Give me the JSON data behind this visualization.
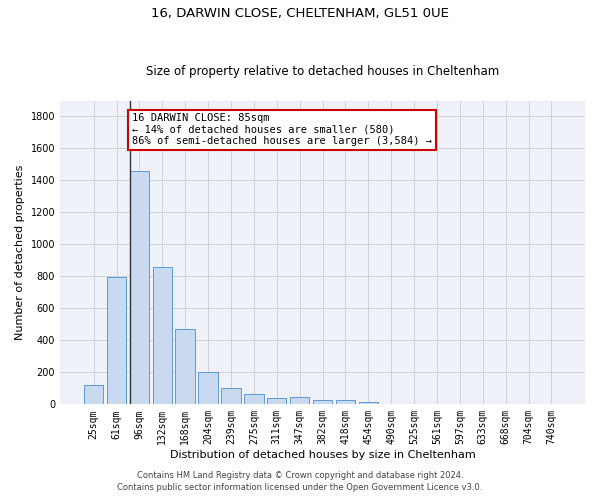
{
  "title": "16, DARWIN CLOSE, CHELTENHAM, GL51 0UE",
  "subtitle": "Size of property relative to detached houses in Cheltenham",
  "xlabel": "Distribution of detached houses by size in Cheltenham",
  "ylabel": "Number of detached properties",
  "footer_line1": "Contains HM Land Registry data © Crown copyright and database right 2024.",
  "footer_line2": "Contains public sector information licensed under the Open Government Licence v3.0.",
  "categories": [
    "25sqm",
    "61sqm",
    "96sqm",
    "132sqm",
    "168sqm",
    "204sqm",
    "239sqm",
    "275sqm",
    "311sqm",
    "347sqm",
    "382sqm",
    "418sqm",
    "454sqm",
    "490sqm",
    "525sqm",
    "561sqm",
    "597sqm",
    "633sqm",
    "668sqm",
    "704sqm",
    "740sqm"
  ],
  "values": [
    120,
    795,
    1460,
    860,
    470,
    200,
    100,
    65,
    40,
    45,
    30,
    25,
    15,
    0,
    0,
    0,
    0,
    0,
    0,
    0,
    0
  ],
  "bar_color": "#c9d9f0",
  "bar_edgecolor": "#5b9bd5",
  "property_line_index": 2,
  "property_line_color": "#333333",
  "annotation_text": "16 DARWIN CLOSE: 85sqm\n← 14% of detached houses are smaller (580)\n86% of semi-detached houses are larger (3,584) →",
  "annotation_box_color": "#ffffff",
  "annotation_box_edgecolor": "#cc0000",
  "ylim": [
    0,
    1900
  ],
  "yticks": [
    0,
    200,
    400,
    600,
    800,
    1000,
    1200,
    1400,
    1600,
    1800
  ],
  "grid_color": "#cccccc",
  "background_color": "#eef2f8",
  "title_fontsize": 9.5,
  "subtitle_fontsize": 8.5,
  "xlabel_fontsize": 8,
  "ylabel_fontsize": 8,
  "tick_fontsize": 7,
  "annotation_fontsize": 7.5,
  "footer_fontsize": 6
}
